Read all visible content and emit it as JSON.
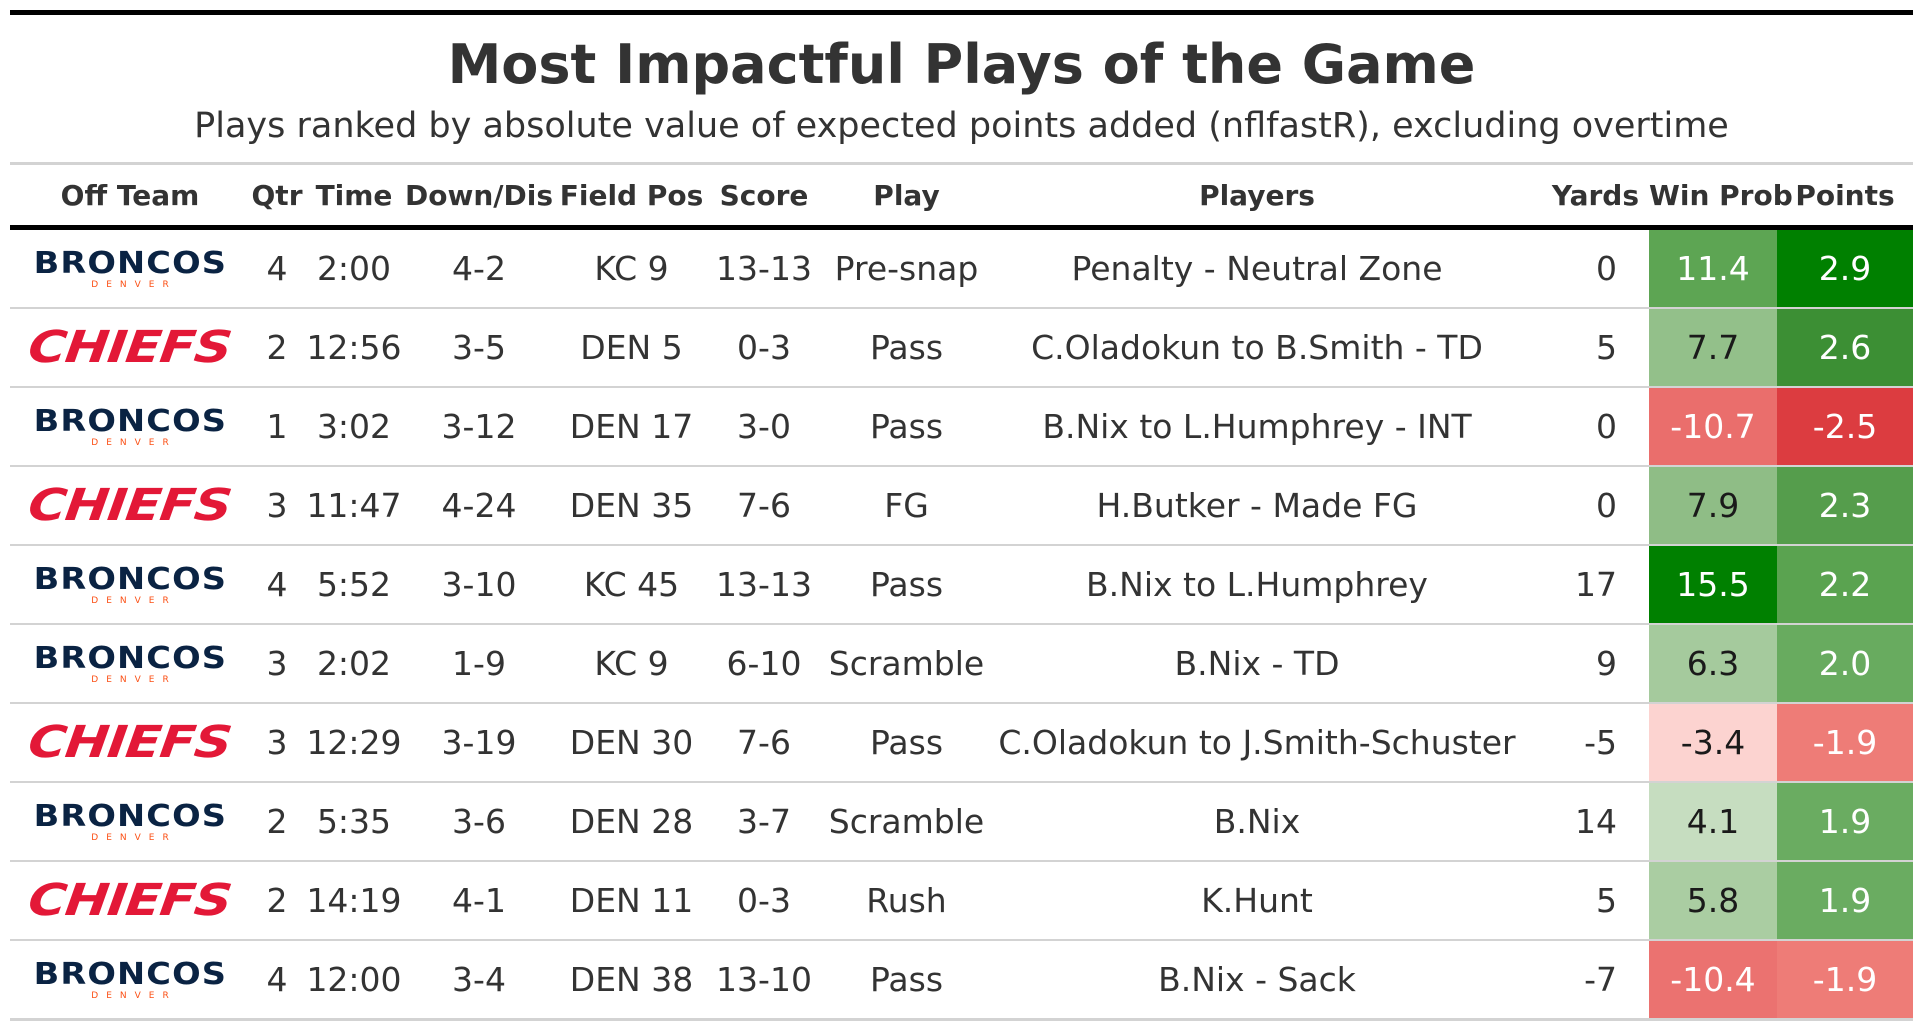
{
  "title": "Most Impactful Plays of the Game",
  "subtitle": "Plays ranked by absolute value of expected points added (nflfastR), excluding overtime",
  "columns": [
    "Off Team",
    "Qtr",
    "Time",
    "Down/Dis",
    "Field Pos",
    "Score",
    "Play",
    "Players",
    "Yards",
    "Win Prob",
    "Points"
  ],
  "logos": {
    "DEN": {
      "word": "BRONCOS",
      "city": "DENVER"
    },
    "KC": {
      "word": "CHIEFS"
    }
  },
  "rows": [
    {
      "team": "DEN",
      "qtr": "4",
      "time": "2:00",
      "down": "4-2",
      "field": "KC 9",
      "score": "13-13",
      "play": "Pre-snap",
      "players": "Penalty - Neutral Zone",
      "yards": "0",
      "wp": "11.4",
      "points": "2.9",
      "wp_color": "#5da553",
      "pts_color": "#008000",
      "wp_text": "#ffffff",
      "pts_text": "#ffffff"
    },
    {
      "team": "KC",
      "qtr": "2",
      "time": "12:56",
      "down": "3-5",
      "field": "DEN 5",
      "score": "0-3",
      "play": "Pass",
      "players": "C.Oladokun to B.Smith - TD",
      "yards": "5",
      "wp": "7.7",
      "points": "2.6",
      "wp_color": "#93c08a",
      "pts_color": "#3c8f34",
      "wp_text": "#1a1a1a",
      "pts_text": "#ffffff"
    },
    {
      "team": "DEN",
      "qtr": "1",
      "time": "3:02",
      "down": "3-12",
      "field": "DEN 17",
      "score": "3-0",
      "play": "Pass",
      "players": "B.Nix to L.Humphrey - INT",
      "yards": "0",
      "wp": "-10.7",
      "points": "-2.5",
      "wp_color": "#ea6e6c",
      "pts_color": "#dc3c40",
      "wp_text": "#ffffff",
      "pts_text": "#ffffff"
    },
    {
      "team": "KC",
      "qtr": "3",
      "time": "11:47",
      "down": "4-24",
      "field": "DEN 35",
      "score": "7-6",
      "play": "FG",
      "players": "H.Butker - Made FG",
      "yards": "0",
      "wp": "7.9",
      "points": "2.3",
      "wp_color": "#8fbd86",
      "pts_color": "#559d4c",
      "wp_text": "#1a1a1a",
      "pts_text": "#ffffff"
    },
    {
      "team": "DEN",
      "qtr": "4",
      "time": "5:52",
      "down": "3-10",
      "field": "KC 45",
      "score": "13-13",
      "play": "Pass",
      "players": "B.Nix to L.Humphrey",
      "yards": "17",
      "wp": "15.5",
      "points": "2.2",
      "wp_color": "#008000",
      "pts_color": "#5aa350",
      "wp_text": "#ffffff",
      "pts_text": "#ffffff"
    },
    {
      "team": "DEN",
      "qtr": "3",
      "time": "2:02",
      "down": "1-9",
      "field": "KC 9",
      "score": "6-10",
      "play": "Scramble",
      "players": "B.Nix - TD",
      "yards": "9",
      "wp": "6.3",
      "points": "2.0",
      "wp_color": "#a5ca9d",
      "pts_color": "#68ab5f",
      "wp_text": "#1a1a1a",
      "pts_text": "#ffffff"
    },
    {
      "team": "KC",
      "qtr": "3",
      "time": "12:29",
      "down": "3-19",
      "field": "DEN 30",
      "score": "7-6",
      "play": "Pass",
      "players": "C.Oladokun to J.Smith-Schuster",
      "yards": "-5",
      "wp": "-3.4",
      "points": "-1.9",
      "wp_color": "#fcd3d0",
      "pts_color": "#ee7c77",
      "wp_text": "#1a1a1a",
      "pts_text": "#ffffff"
    },
    {
      "team": "DEN",
      "qtr": "2",
      "time": "5:35",
      "down": "3-6",
      "field": "DEN 28",
      "score": "3-7",
      "play": "Scramble",
      "players": "B.Nix",
      "yards": "14",
      "wp": "4.1",
      "points": "1.9",
      "wp_color": "#c6ddc0",
      "pts_color": "#6aac61",
      "wp_text": "#1a1a1a",
      "pts_text": "#ffffff"
    },
    {
      "team": "KC",
      "qtr": "2",
      "time": "14:19",
      "down": "4-1",
      "field": "DEN 11",
      "score": "0-3",
      "play": "Rush",
      "players": "K.Hunt",
      "yards": "5",
      "wp": "5.8",
      "points": "1.9",
      "wp_color": "#aacda2",
      "pts_color": "#6aac61",
      "wp_text": "#1a1a1a",
      "pts_text": "#ffffff"
    },
    {
      "team": "DEN",
      "qtr": "4",
      "time": "12:00",
      "down": "3-4",
      "field": "DEN 38",
      "score": "13-10",
      "play": "Pass",
      "players": "B.Nix - Sack",
      "yards": "-7",
      "wp": "-10.4",
      "points": "-1.9",
      "wp_color": "#eb7270",
      "pts_color": "#ee7c77",
      "wp_text": "#ffffff",
      "pts_text": "#ffffff"
    }
  ]
}
